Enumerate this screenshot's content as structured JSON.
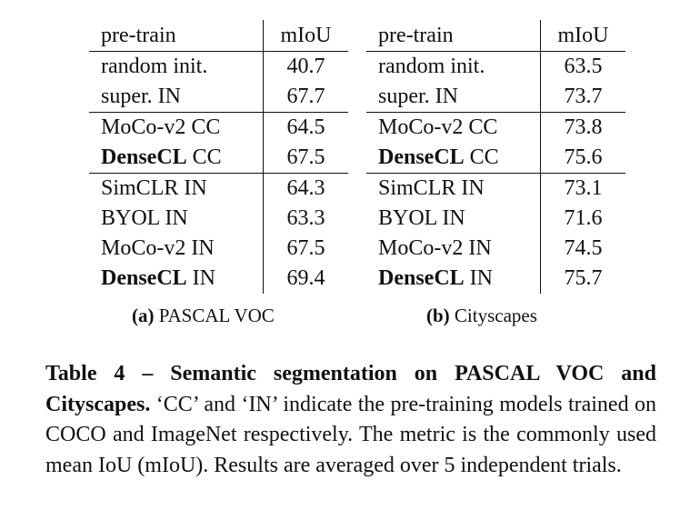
{
  "tables": [
    {
      "headers": [
        "pre-train",
        "mIoU"
      ],
      "caption_label": "(a)",
      "caption_text": "PASCAL VOC",
      "rows": [
        {
          "method": "",
          "suffix": "random init.",
          "value": "40.7"
        },
        {
          "method": "",
          "suffix": "super. IN",
          "value": "67.7"
        },
        {
          "method": "",
          "suffix": "MoCo-v2 CC",
          "value": "64.5"
        },
        {
          "method": "DenseCL",
          "suffix": " CC",
          "value": "67.5"
        },
        {
          "method": "",
          "suffix": "SimCLR IN",
          "value": "64.3"
        },
        {
          "method": "",
          "suffix": "BYOL IN",
          "value": "63.3"
        },
        {
          "method": "",
          "suffix": "MoCo-v2 IN",
          "value": "67.5"
        },
        {
          "method": "DenseCL",
          "suffix": " IN",
          "value": "69.4"
        }
      ]
    },
    {
      "headers": [
        "pre-train",
        "mIoU"
      ],
      "caption_label": "(b)",
      "caption_text": "Cityscapes",
      "rows": [
        {
          "method": "",
          "suffix": "random init.",
          "value": "63.5"
        },
        {
          "method": "",
          "suffix": "super. IN",
          "value": "73.7"
        },
        {
          "method": "",
          "suffix": "MoCo-v2 CC",
          "value": "73.8"
        },
        {
          "method": "DenseCL",
          "suffix": " CC",
          "value": "75.6"
        },
        {
          "method": "",
          "suffix": "SimCLR IN",
          "value": "73.1"
        },
        {
          "method": "",
          "suffix": "BYOL IN",
          "value": "71.6"
        },
        {
          "method": "",
          "suffix": "MoCo-v2 IN",
          "value": "74.5"
        },
        {
          "method": "DenseCL",
          "suffix": " IN",
          "value": "75.7"
        }
      ]
    }
  ],
  "caption": {
    "title": "Table 4 – Semantic segmentation on PASCAL VOC and Cityscapes.",
    "body": "‘CC’ and ‘IN’ indicate the pre-training models trained on COCO and ImageNet respectively. The metric is the commonly used mean IoU (mIoU). Results are averaged over 5 independent trials."
  }
}
